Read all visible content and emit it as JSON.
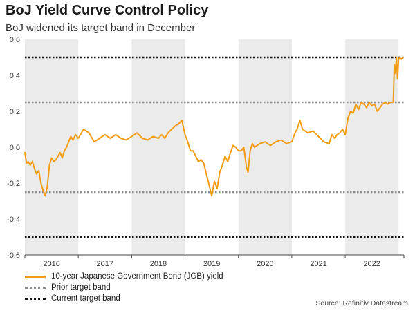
{
  "header": {
    "title": "BoJ Yield Curve Control Policy",
    "subtitle": "BoJ widened its target band in December"
  },
  "legend": {
    "items": [
      {
        "label": "10-year Japanese Government Bond (JGB) yield",
        "style": "solid",
        "color": "#f39c12"
      },
      {
        "label": "Prior target band",
        "style": "dotted",
        "color": "#8c8c8c"
      },
      {
        "label": "Current target band",
        "style": "dotted",
        "color": "#111111"
      }
    ]
  },
  "source": "Source: Refinitiv Datastream",
  "chart_data": {
    "type": "line",
    "title": "BoJ Yield Curve Control Policy",
    "subtitle": "BoJ widened its target band in December",
    "xlabel": "",
    "ylabel": "",
    "xlim": [
      2016.0,
      2023.1
    ],
    "ylim": [
      -0.6,
      0.6
    ],
    "yticks": [
      -0.6,
      -0.4,
      -0.2,
      0.0,
      0.2,
      0.4,
      0.6
    ],
    "ytick_labels": [
      "-0.6",
      "-0.4",
      "-0.2",
      "0.0",
      "0.2",
      "0.4",
      "0.6"
    ],
    "year_labels": [
      "2016",
      "2017",
      "2018",
      "2019",
      "2020",
      "2021",
      "2022"
    ],
    "shaded_years": [
      "2016",
      "2018",
      "2020",
      "2022"
    ],
    "shade_color": "#ebebeb",
    "grid": false,
    "legend_position": "bottom-left",
    "reference_lines": [
      {
        "name": "Current target band",
        "values": [
          0.5,
          -0.5
        ],
        "color": "#111111",
        "style": "dotted"
      },
      {
        "name": "Prior target band",
        "values": [
          0.25,
          -0.25
        ],
        "color": "#8c8c8c",
        "style": "dotted"
      }
    ],
    "series": [
      {
        "name": "10-year Japanese Government Bond (JGB) yield",
        "color": "#f39c12",
        "x": [
          2016.0,
          2016.03,
          2016.06,
          2016.1,
          2016.14,
          2016.18,
          2016.22,
          2016.26,
          2016.3,
          2016.34,
          2016.38,
          2016.42,
          2016.46,
          2016.5,
          2016.54,
          2016.58,
          2016.62,
          2016.66,
          2016.7,
          2016.74,
          2016.78,
          2016.82,
          2016.86,
          2016.9,
          2016.95,
          2017.0,
          2017.1,
          2017.2,
          2017.3,
          2017.4,
          2017.5,
          2017.6,
          2017.7,
          2017.8,
          2017.9,
          2018.0,
          2018.1,
          2018.2,
          2018.3,
          2018.4,
          2018.5,
          2018.56,
          2018.62,
          2018.68,
          2018.75,
          2018.82,
          2018.88,
          2018.94,
          2019.0,
          2019.05,
          2019.1,
          2019.15,
          2019.2,
          2019.25,
          2019.3,
          2019.35,
          2019.4,
          2019.45,
          2019.5,
          2019.55,
          2019.6,
          2019.65,
          2019.7,
          2019.75,
          2019.8,
          2019.85,
          2019.9,
          2019.95,
          2020.0,
          2020.05,
          2020.1,
          2020.15,
          2020.18,
          2020.22,
          2020.26,
          2020.3,
          2020.4,
          2020.5,
          2020.6,
          2020.7,
          2020.8,
          2020.9,
          2021.0,
          2021.06,
          2021.1,
          2021.15,
          2021.2,
          2021.3,
          2021.4,
          2021.5,
          2021.6,
          2021.7,
          2021.75,
          2021.8,
          2021.85,
          2021.9,
          2021.95,
          2022.0,
          2022.05,
          2022.1,
          2022.15,
          2022.2,
          2022.25,
          2022.3,
          2022.35,
          2022.4,
          2022.45,
          2022.5,
          2022.55,
          2022.6,
          2022.65,
          2022.7,
          2022.75,
          2022.8,
          2022.85,
          2022.9,
          2022.92,
          2022.94,
          2022.96,
          2022.98,
          2023.0,
          2023.02,
          2023.05,
          2023.08
        ],
        "values": [
          -0.03,
          -0.09,
          -0.08,
          -0.1,
          -0.08,
          -0.12,
          -0.15,
          -0.13,
          -0.2,
          -0.24,
          -0.27,
          -0.22,
          -0.1,
          -0.06,
          -0.08,
          -0.07,
          -0.05,
          -0.03,
          -0.06,
          -0.02,
          0.0,
          0.03,
          0.06,
          0.04,
          0.07,
          0.05,
          0.1,
          0.08,
          0.03,
          0.05,
          0.07,
          0.05,
          0.07,
          0.05,
          0.04,
          0.06,
          0.08,
          0.05,
          0.04,
          0.06,
          0.05,
          0.07,
          0.05,
          0.08,
          0.1,
          0.12,
          0.13,
          0.15,
          0.07,
          0.03,
          -0.02,
          -0.02,
          -0.05,
          -0.08,
          -0.07,
          -0.09,
          -0.15,
          -0.21,
          -0.27,
          -0.19,
          -0.23,
          -0.14,
          -0.1,
          -0.05,
          -0.08,
          -0.03,
          0.01,
          0.0,
          -0.02,
          -0.02,
          0.0,
          -0.11,
          -0.14,
          -0.02,
          0.02,
          0.0,
          0.02,
          0.03,
          0.01,
          0.03,
          0.04,
          0.02,
          0.03,
          0.08,
          0.1,
          0.15,
          0.1,
          0.08,
          0.09,
          0.06,
          0.03,
          0.02,
          0.07,
          0.05,
          0.07,
          0.08,
          0.1,
          0.07,
          0.16,
          0.2,
          0.19,
          0.24,
          0.21,
          0.25,
          0.24,
          0.22,
          0.25,
          0.23,
          0.24,
          0.2,
          0.22,
          0.24,
          0.25,
          0.24,
          0.25,
          0.25,
          0.46,
          0.41,
          0.5,
          0.38,
          0.49,
          0.5,
          0.49,
          0.5
        ]
      }
    ]
  }
}
